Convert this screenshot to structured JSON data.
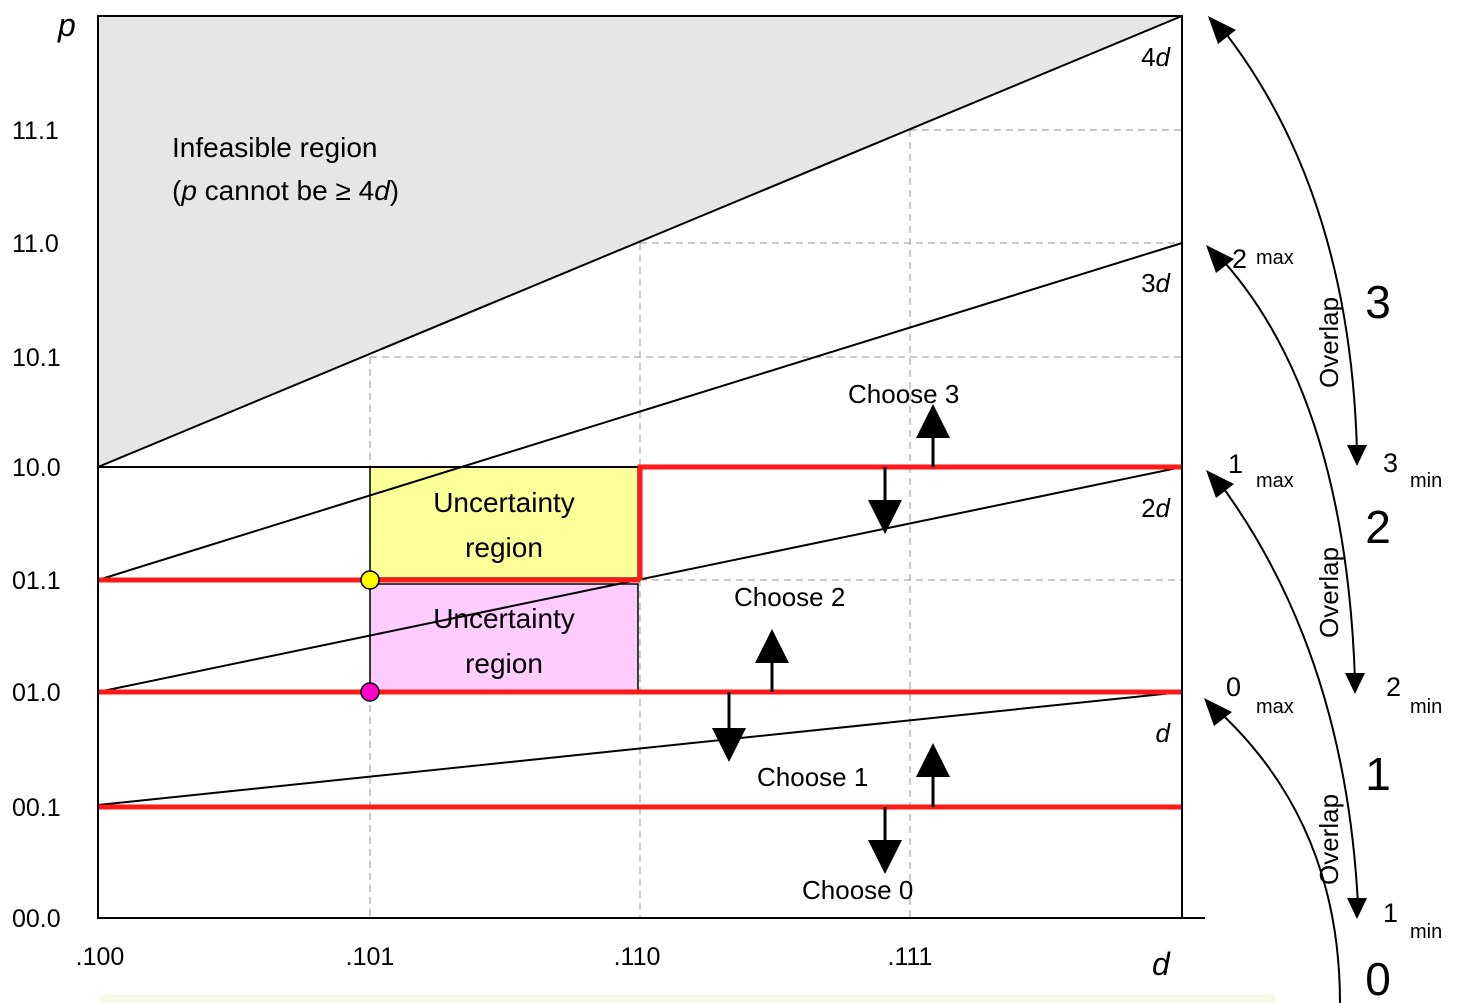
{
  "axes": {
    "y_label": "p",
    "x_label": "d",
    "y_ticks": [
      "11.1",
      "11.0",
      "10.1",
      "10.0",
      "01.1",
      "01.0",
      "00.1",
      "00.0"
    ],
    "x_ticks": [
      ".100",
      ".101",
      ".110",
      ".111"
    ]
  },
  "lines": {
    "l4d": "4d",
    "l3d": "3d",
    "l2d": "2d",
    "l1d": "d"
  },
  "infeasible": {
    "line1": "Infeasible region",
    "line2_p": "p",
    "line2_mid": " cannot be ≥ 4",
    "line2_d": "d",
    "line2_end": ")",
    "line2_open": "("
  },
  "uncertainty_upper": {
    "line1": "Uncertainty",
    "line2": "region",
    "color": "#ffff99"
  },
  "uncertainty_lower": {
    "line1": "Uncertainty",
    "line2": "region",
    "color": "#ffccff"
  },
  "choices": {
    "choose3": "Choose 3",
    "choose2": "Choose 2",
    "choose1": "Choose 1",
    "choose0": "Choose 0"
  },
  "right_scale": {
    "digits": [
      "3",
      "2",
      "1",
      "0"
    ],
    "overlap": "Overlap",
    "labels": {
      "two_max": "2",
      "one_max": "1",
      "zero_max": "0",
      "three_min": "3",
      "two_min": "2",
      "one_min": "1",
      "max": "max",
      "min": "min"
    }
  },
  "colors": {
    "selection_lines": "#ff1a1a",
    "infeasible_fill": "#e6e6e6",
    "yellow_dot": "#ffff00",
    "magenta_dot": "#ff00cc"
  }
}
